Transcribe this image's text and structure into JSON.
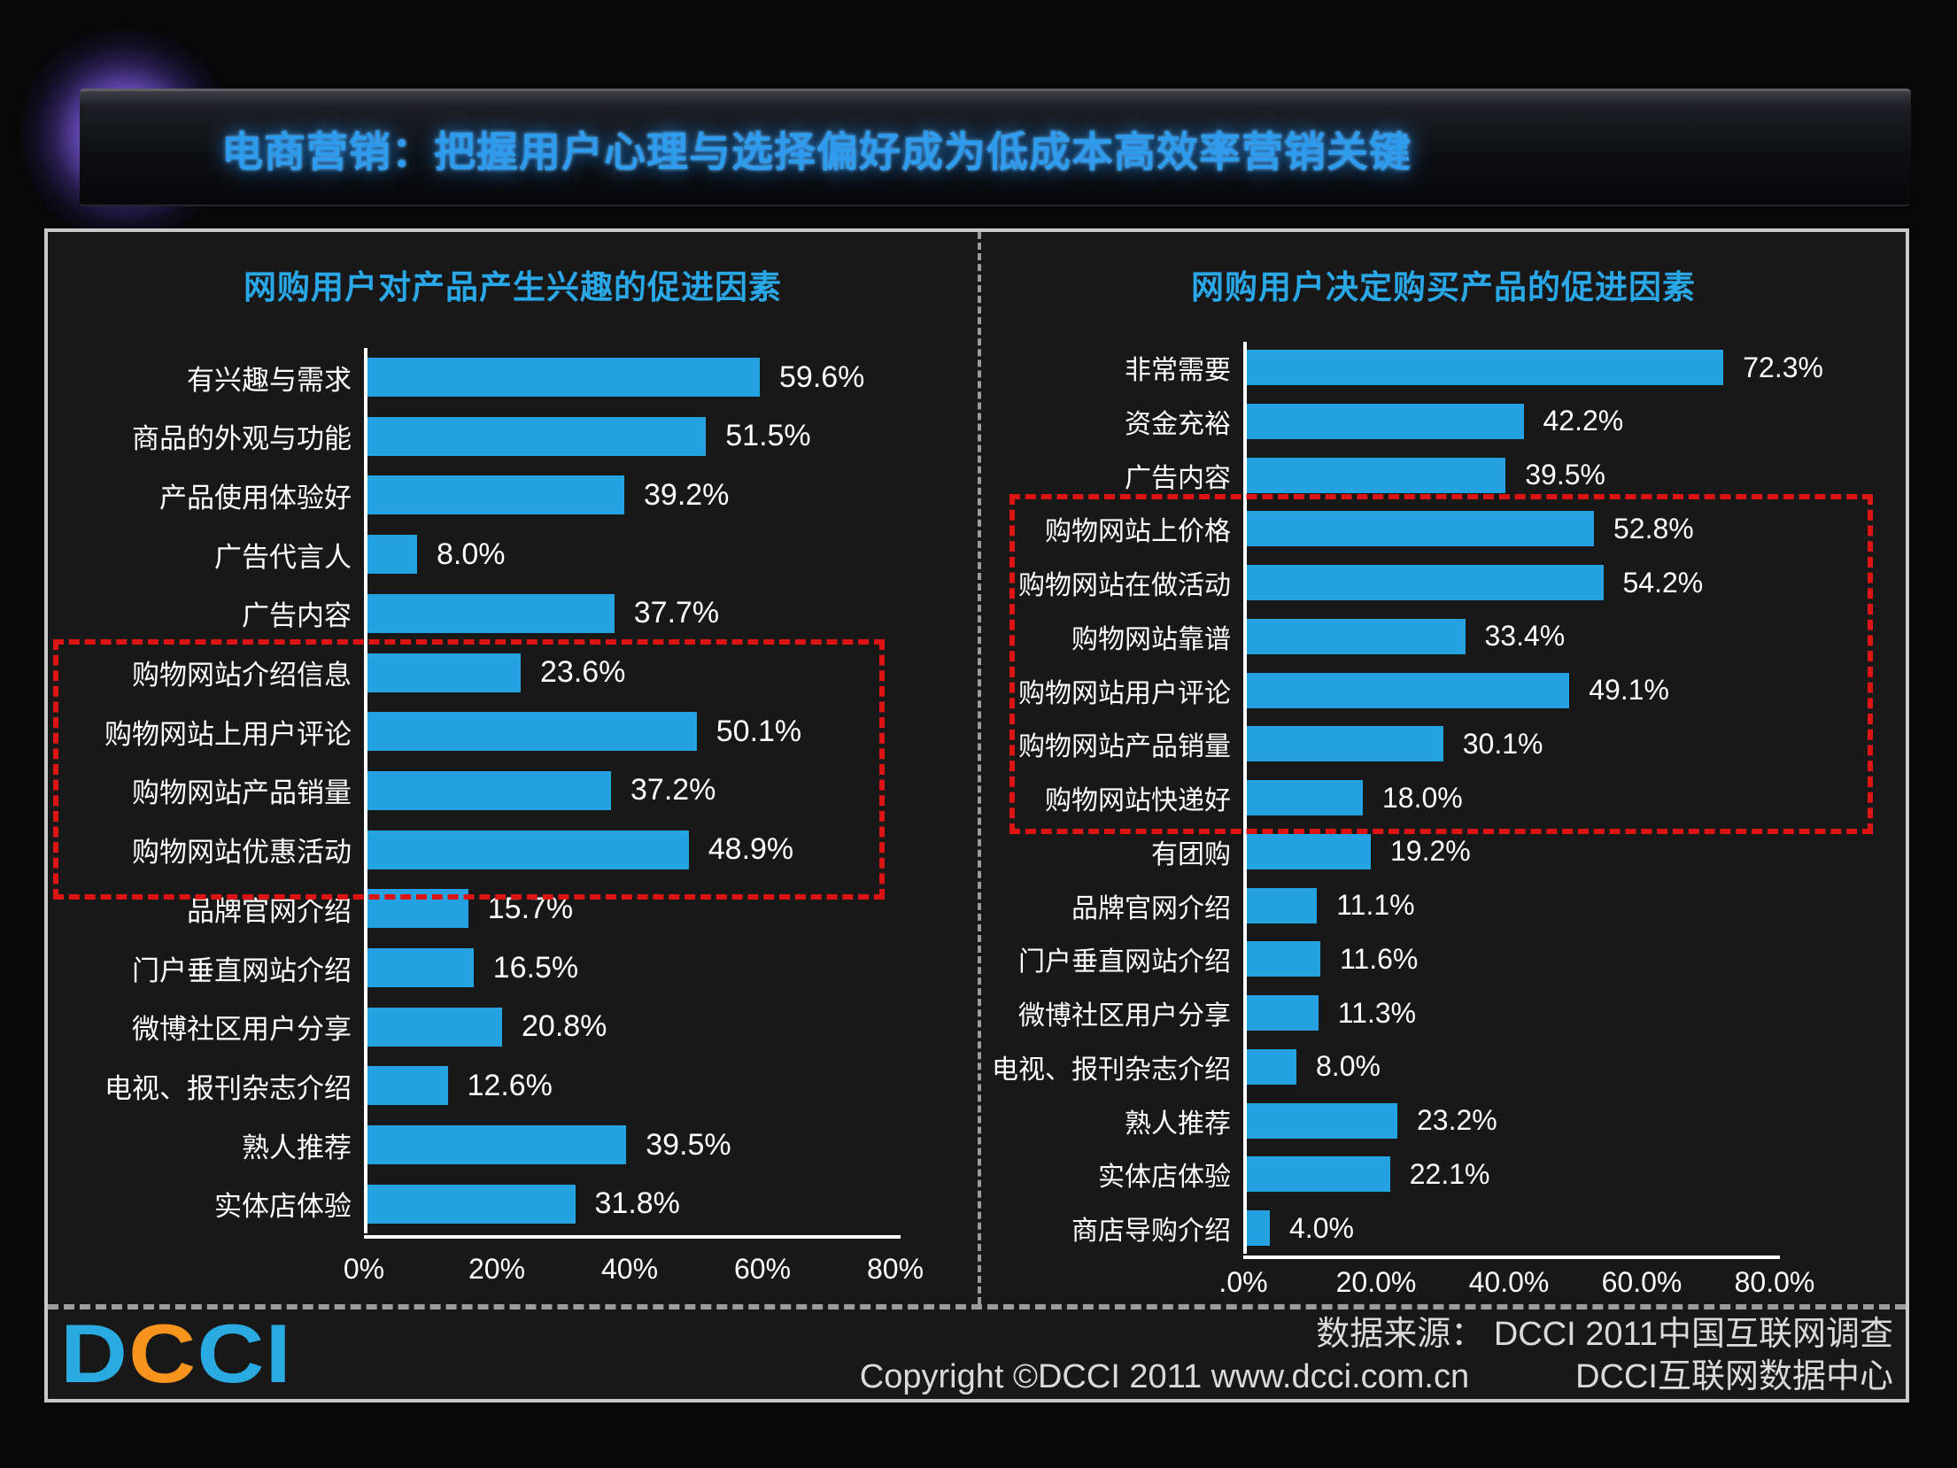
{
  "page": {
    "title": "电商营销：把握用户心理与选择偏好成为低成本高效率营销关键"
  },
  "colors": {
    "bar_blue": "#25A3E0",
    "title_blue": "#2F9BEC",
    "chart_title_blue": "#29A7E6",
    "highlight_red": "#DC1414",
    "frame_gray": "#C9C9C9",
    "logo_blue": "#29ABE2",
    "logo_orange": "#F7941E"
  },
  "chart_data": [
    {
      "type": "bar",
      "orientation": "horizontal",
      "title": "网购用户对产品产生兴趣的促进因素",
      "xlim": [
        0,
        80
      ],
      "x_tick_values": [
        0,
        20,
        40,
        60,
        80
      ],
      "x_tick_labels": [
        "0%",
        "20%",
        "40%",
        "60%",
        "80%"
      ],
      "grid": false,
      "categories": [
        "有兴趣与需求",
        "商品的外观与功能",
        "产品使用体验好",
        "广告代言人",
        "广告内容",
        "购物网站介绍信息",
        "购物网站上用户评论",
        "购物网站产品销量",
        "购物网站优惠活动",
        "品牌官网介绍",
        "门户垂直网站介绍",
        "微博社区用户分享",
        "电视、报刊杂志介绍",
        "熟人推荐",
        "实体店体验"
      ],
      "values": [
        59.6,
        51.5,
        39.2,
        8.0,
        37.7,
        23.6,
        50.1,
        37.2,
        48.9,
        15.7,
        16.5,
        20.8,
        12.6,
        39.5,
        31.8
      ],
      "value_labels": [
        "59.6%",
        "51.5%",
        "39.2%",
        "8.0%",
        "37.7%",
        "23.6%",
        "50.1%",
        "37.2%",
        "48.9%",
        "15.7%",
        "16.5%",
        "20.8%",
        "12.6%",
        "39.5%",
        "31.8%"
      ],
      "highlight_rows_start": 5,
      "highlight_rows_end": 8
    },
    {
      "type": "bar",
      "orientation": "horizontal",
      "title": "网购用户决定购买产品的促进因素",
      "xlim": [
        0,
        80
      ],
      "x_tick_values": [
        0,
        20,
        40,
        60,
        80
      ],
      "x_tick_labels": [
        ".0%",
        "20.0%",
        "40.0%",
        "60.0%",
        "80.0%"
      ],
      "grid": false,
      "categories": [
        "非常需要",
        "资金充裕",
        "广告内容",
        "购物网站上价格",
        "购物网站在做活动",
        "购物网站靠谱",
        "购物网站用户评论",
        "购物网站产品销量",
        "购物网站快递好",
        "有团购",
        "品牌官网介绍",
        "门户垂直网站介绍",
        "微博社区用户分享",
        "电视、报刊杂志介绍",
        "熟人推荐",
        "实体店体验",
        "商店导购介绍"
      ],
      "values": [
        72.3,
        42.2,
        39.5,
        52.8,
        54.2,
        33.4,
        49.1,
        30.1,
        18.0,
        19.2,
        11.1,
        11.6,
        11.3,
        8.0,
        23.2,
        22.1,
        4.0
      ],
      "value_labels": [
        "72.3%",
        "42.2%",
        "39.5%",
        "52.8%",
        "54.2%",
        "33.4%",
        "49.1%",
        "30.1%",
        "18.0%",
        "19.2%",
        "11.1%",
        "11.6%",
        "11.3%",
        "8.0%",
        "23.2%",
        "22.1%",
        "4.0%"
      ],
      "highlight_rows_start": 3,
      "highlight_rows_end": 8
    }
  ],
  "footer": {
    "logo_text": "DCCI",
    "logo_letter_colors": [
      "#29ABE2",
      "#F7941E",
      "#29ABE2",
      "#29ABE2"
    ],
    "source_line": "数据来源： DCCI 2011中国互联网调查",
    "copyright_line": "Copyright ©DCCI 2011 www.dcci.com.cn",
    "org_line": "DCCI互联网数据中心"
  }
}
